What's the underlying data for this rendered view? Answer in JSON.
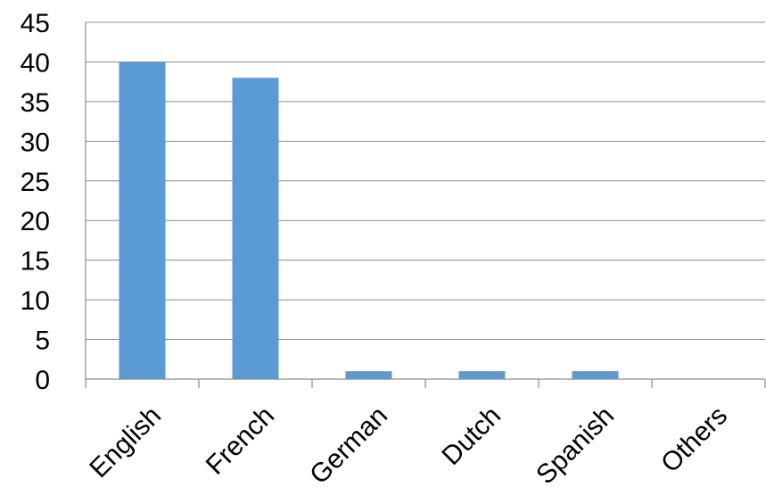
{
  "chart_data": {
    "type": "bar",
    "title": "",
    "xlabel": "",
    "ylabel": "",
    "categories": [
      "English",
      "French",
      "German",
      "Dutch",
      "Spanish",
      "Others"
    ],
    "values": [
      40,
      38,
      1,
      1,
      1,
      0
    ],
    "ylim": [
      0,
      45
    ],
    "ytick_step": 5,
    "yticks": [
      "0",
      "5",
      "10",
      "15",
      "20",
      "25",
      "30",
      "35",
      "40",
      "45"
    ],
    "grid": true,
    "legend": "none",
    "bar_color": "#5b9bd5",
    "grid_color": "#8c8c8c"
  }
}
